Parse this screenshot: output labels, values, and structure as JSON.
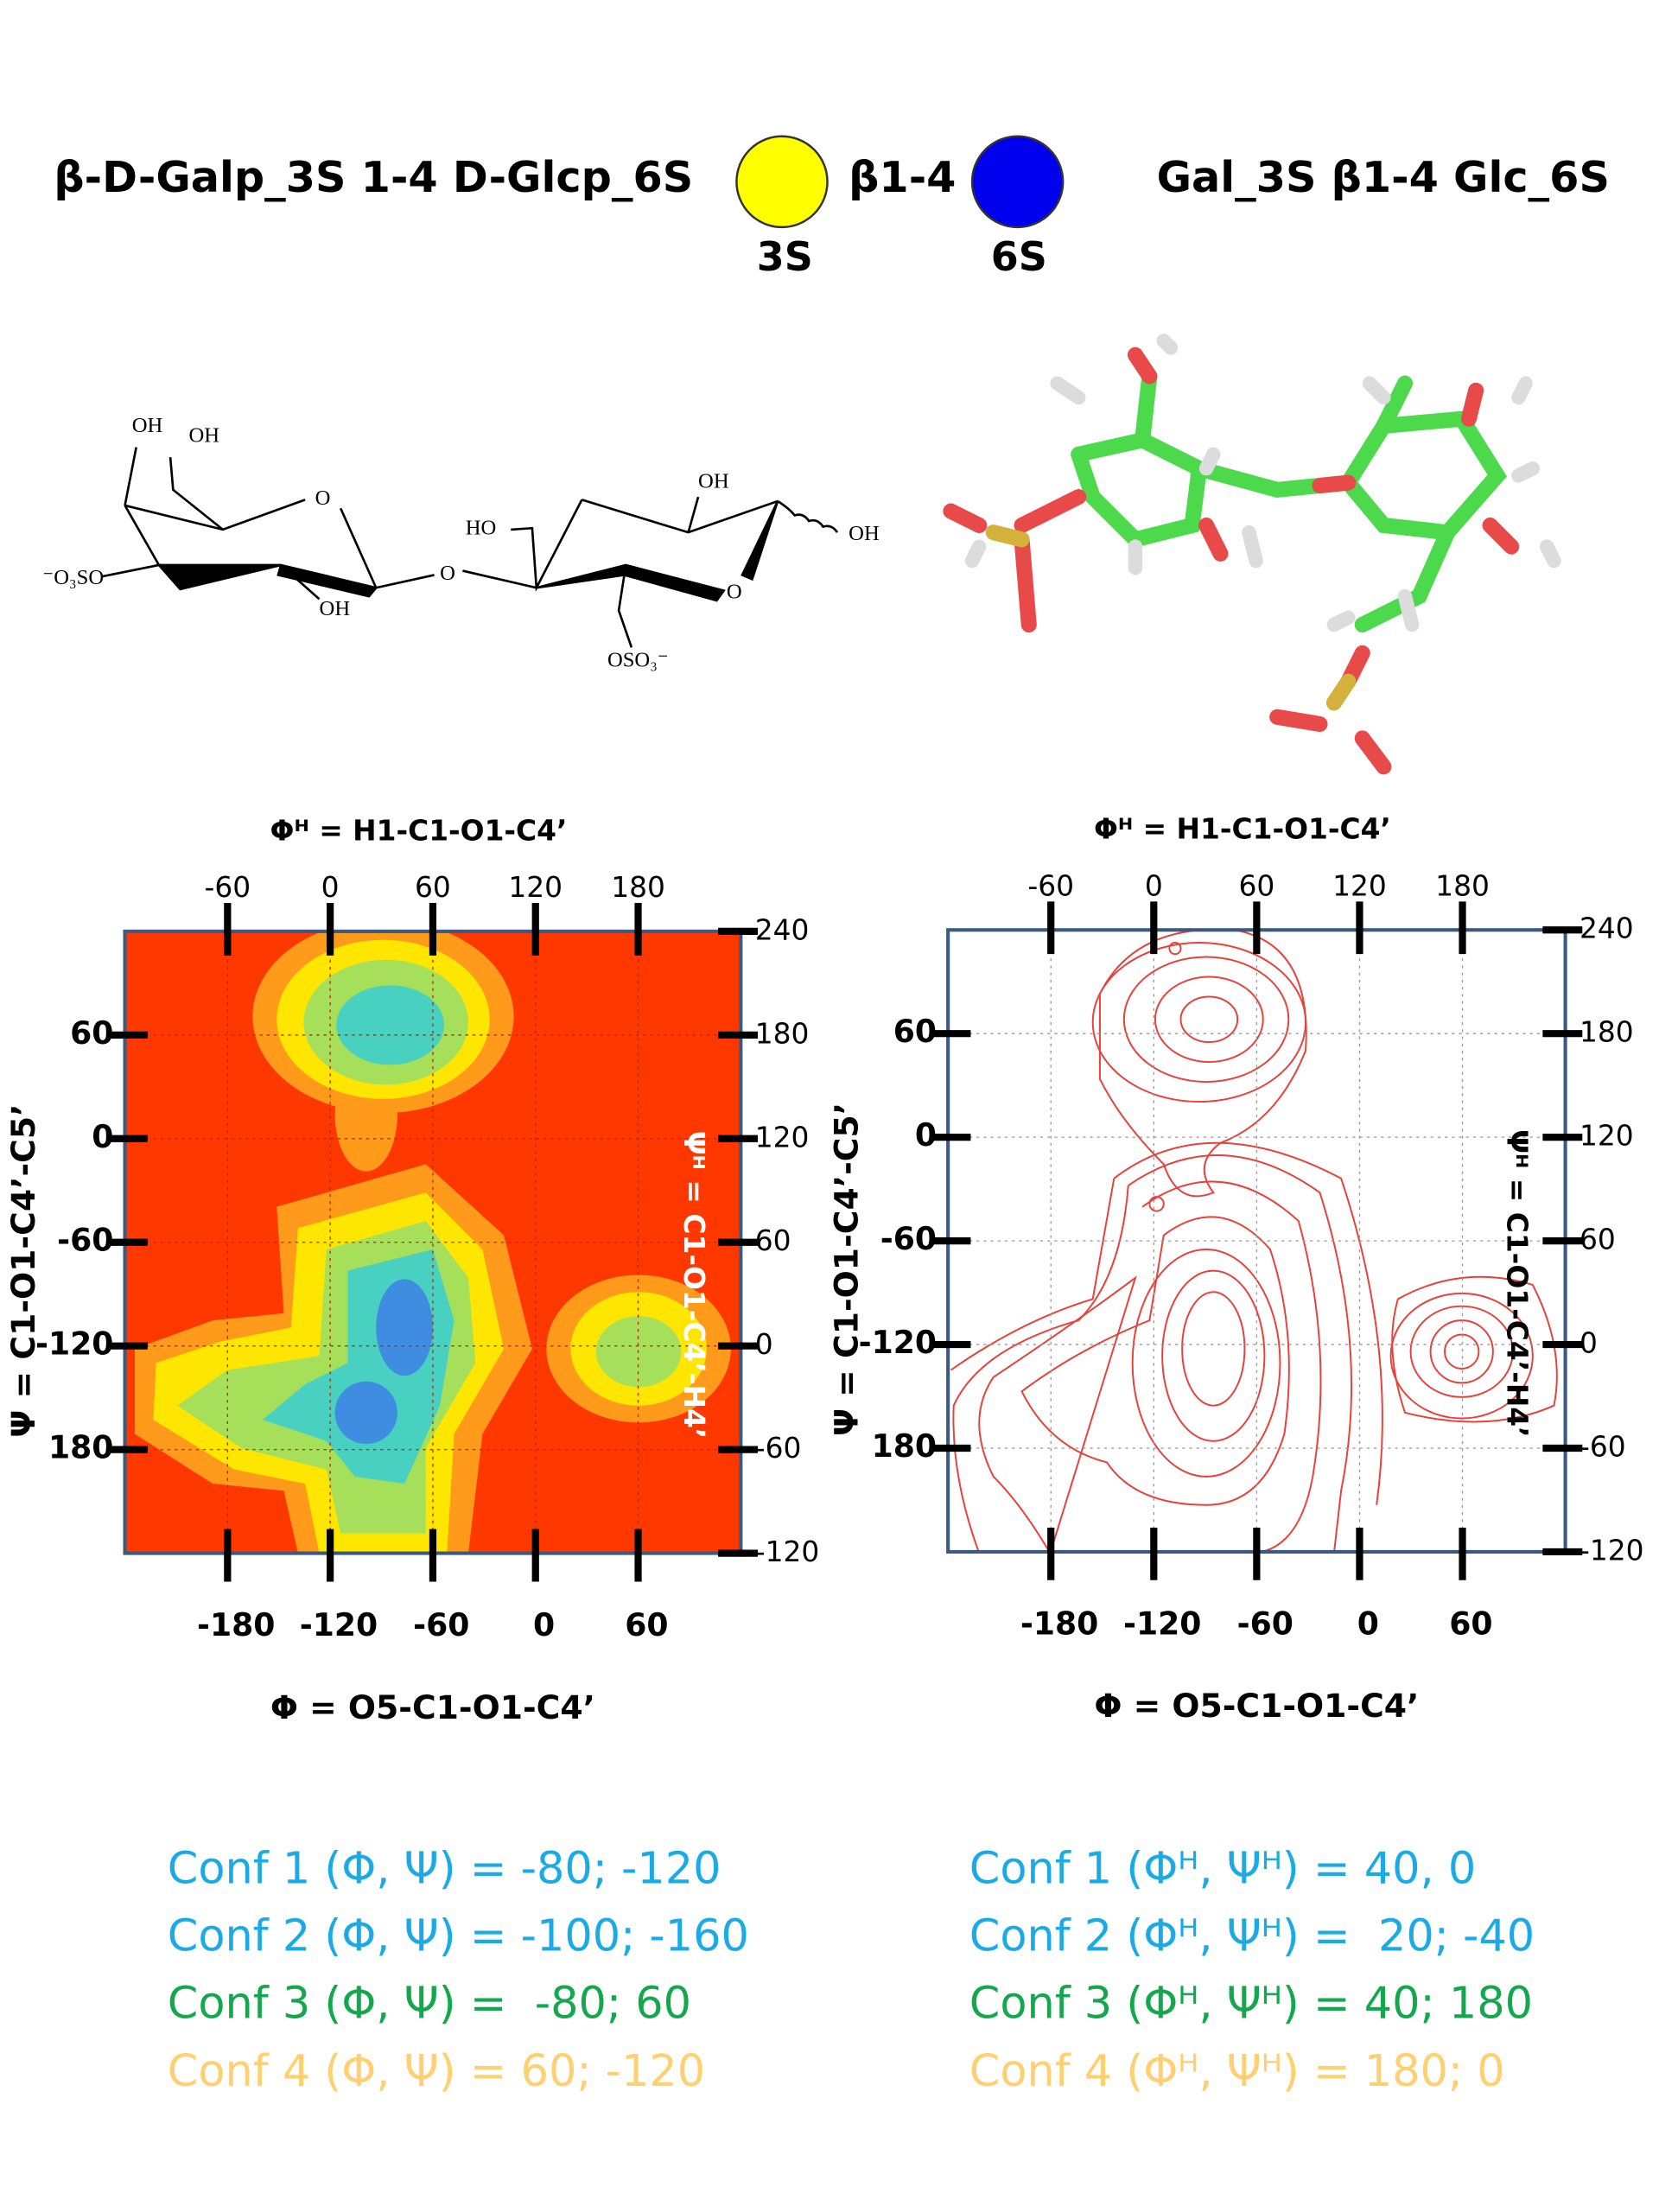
{
  "header": {
    "left": "β-D-Galp_3S 1-4 D-Glcp_6S",
    "linkage": "β1-4",
    "gal_label": "3S",
    "glc_label": "6S",
    "right": "Gal_3S β1-4 Glc_6S"
  },
  "structure": {
    "labels": [
      "OH",
      "OH",
      "O",
      "⁻O₃SO",
      "OH",
      "O",
      "HO",
      "OH",
      "OH",
      "O",
      "OSO₃⁻"
    ]
  },
  "plots": [
    {
      "top_title": "Φᴴ = H1-C1-O1-C4’",
      "bottom_title": "Φ = O5-C1-O1-C4’",
      "left_title": "Ψ = C1-O1-C4’-C5’",
      "right_title": "Ψᴴ = C1-O1-C4’-H4’",
      "x_bottom": {
        "lim": [
          -240,
          120
        ],
        "ticks": [
          -180,
          -120,
          -60,
          0,
          60
        ]
      },
      "x_top": {
        "lim": [
          -120,
          240
        ],
        "ticks": [
          -60,
          0,
          60,
          120,
          180
        ]
      },
      "y_left": {
        "lim": [
          -240,
          120
        ],
        "ticks": [
          60,
          0,
          -60,
          -120,
          {
            "value": -180,
            "label": "180"
          }
        ]
      },
      "y_right": {
        "lim": [
          -120,
          240
        ],
        "ticks": [
          240,
          180,
          120,
          60,
          0,
          -60,
          -120
        ]
      }
    },
    {
      "top_title": "Φᴴ = H1-C1-O1-C4’",
      "bottom_title": "Φ = O5-C1-O1-C4’",
      "left_title": "Ψ = C1-O1-C4’-C5’",
      "right_title": "Ψᴴ = C1-O1-C4’-H4’",
      "x_bottom": {
        "lim": [
          -240,
          120
        ],
        "ticks": [
          -180,
          -120,
          -60,
          0,
          60
        ]
      },
      "x_top": {
        "lim": [
          -120,
          240
        ],
        "ticks": [
          -60,
          0,
          60,
          120,
          180
        ]
      },
      "y_left": {
        "lim": [
          -240,
          120
        ],
        "ticks": [
          60,
          0,
          -60,
          -120,
          {
            "value": -180,
            "label": "180"
          }
        ]
      },
      "y_right": {
        "lim": [
          -120,
          240
        ],
        "ticks": [
          240,
          180,
          120,
          60,
          0,
          -60,
          -120
        ]
      }
    }
  ],
  "conformations": {
    "left": [
      "Conf 1 (Φ, Ψ) = -80; -120",
      "Conf 2 (Φ, Ψ) = -100; -160",
      "Conf 3 (Φ, Ψ) =  -80; 60",
      "Conf 4 (Φ, Ψ) = 60; -120"
    ],
    "right": [
      "Conf 1 (Φᴴ, Ψᴴ) = 40, 0",
      "Conf 2 (Φᴴ, Ψᴴ) =  20; -40",
      "Conf 3 (Φᴴ, Ψᴴ) = 40; 180",
      "Conf 4 (Φᴴ, Ψᴴ) = 180; 0"
    ],
    "colors": [
      "#1aabe6",
      "#1aabe6",
      "#14a84e",
      "#ffcf70"
    ]
  }
}
